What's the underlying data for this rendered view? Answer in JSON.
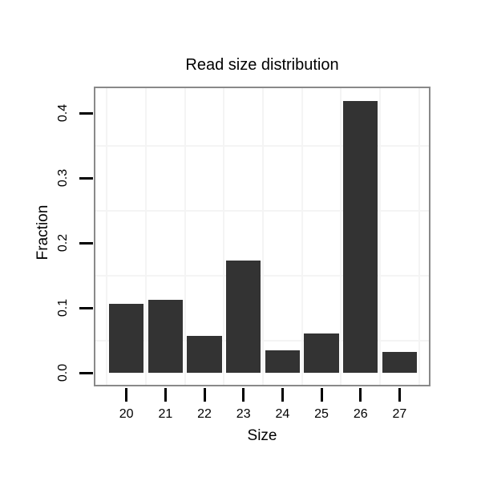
{
  "chart_data": {
    "type": "bar",
    "title": "Read size distribution",
    "xlabel": "Size",
    "ylabel": "Fraction",
    "categories": [
      "20",
      "21",
      "22",
      "23",
      "24",
      "25",
      "26",
      "27"
    ],
    "values": [
      0.106,
      0.112,
      0.057,
      0.173,
      0.035,
      0.06,
      0.419,
      0.032
    ],
    "ytick_labels": [
      "0.0",
      "0.1",
      "0.2",
      "0.3",
      "0.4"
    ],
    "ytick_values": [
      0,
      0.1,
      0.2,
      0.3,
      0.4
    ],
    "ylim": [
      -0.021,
      0.441
    ],
    "grid": true,
    "legend_position": "none",
    "bar_color": "#333333",
    "panel_border_color": "#898989",
    "grid_color": "#f4f4f4",
    "tick_color": "#000000",
    "background_color": "#ffffff"
  }
}
